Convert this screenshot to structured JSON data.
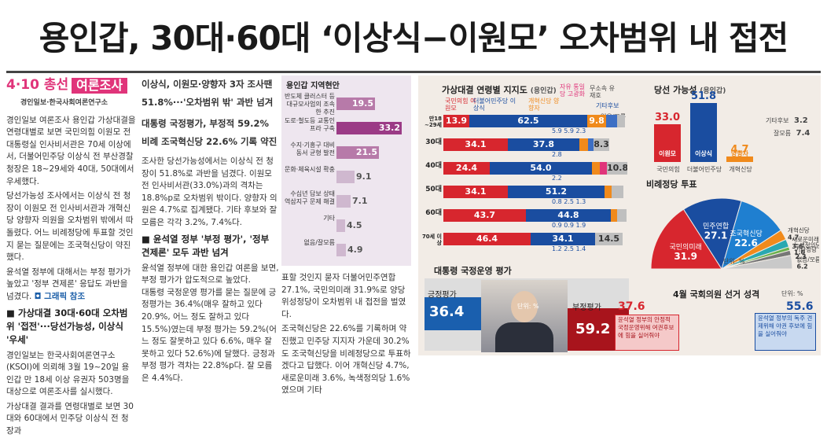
{
  "headline": "용인갑, 30대·60대 ‘이상식−이원모’ 오차범위 내 접전",
  "brand": {
    "date": "4·10 총선",
    "label": "여론조사",
    "sub": "경인일보·한국사회여론연구소"
  },
  "col1": {
    "paragraphs": [
      "경인일보 여론조사 용인갑 가상대결을 연령대별로 보면 국민의힘 이원모 전 대통령실 인사비서관은 70세 이상에서, 더불어민주당 이상식 전 부산경찰청장은 18~29세와 40대, 50대에서 우세했다.",
      "당선가능성 조사에서는 이상식 전 청장이 이원모 전 인사비서관과 개혁신당 양향자 의원을 오차범위 밖에서 따돌렸다. 어느 비례정당에 투표할 것인지 묻는 질문에는 조국혁신당이 약진했다.",
      "윤석열 정부에 대해서는 부정 평가가 높았고 '정부 견제론' 응답도 과반을 넘겼다."
    ],
    "see": "그래픽 참조",
    "subhead": "■ 가상대결 30대·60대 오차범위 '접전'···당선가능성, 이상식 '우세'",
    "paragraphs2": [
      "경인일보는 한국사회여론연구소(KSOI)에 의뢰해 3월 19~20일 용인갑 만 18세 이상 유권자 503명을 대상으로 여론조사를 실시했다.",
      "가상대결 결과를 연령대별로 보면 30대와 60대에서 민주당 이상식 전 청장과"
    ]
  },
  "col2": {
    "lead": [
      "이상식, 이원모·양향자 3자 조사땐",
      "51.8%···'오차범위 밖' 과반 넘겨"
    ],
    "lead2": [
      "대통령 국정평가, 부정적 59.2%",
      "비례 조국혁신당 22.6% 기록 약진"
    ],
    "paragraphs": [
      "조사한 당선가능성에서는 이상식 전 청장이 51.8%로 과반을 넘겼다. 이원모 전 인사비서관(33.0%)과의 격차는 18.8%p로 오차범위 밖이다. 양향자 의원은 4.7%로 집계됐다. 기타 후보와 잘 모름은 각각 3.2%, 7.4%다."
    ],
    "subhead": "■ 윤석열 정부 '부정 평가', '정부 견제론' 모두 과반 넘겨",
    "paragraphs2": [
      "윤석열 정부에 대한 용인갑 여론을 보면, 부정 평가가 압도적으로 높았다.",
      "대통령 국정운영 평가를 묻는 질문에 긍정평가는 36.4%(매우 잘하고 있다 20.9%, 어느 정도 잘하고 있다 15.5%)였는데 부정 평가는 59.2%(어느 정도 잘못하고 있다 6.6%, 매우 잘못하고 있다 52.6%)에 달했다. 긍정과 부정 평가 격차는 22.8%p다. 잘 모름은 4.4%다."
    ]
  },
  "col3": {
    "paragraphs": [
      "표할 것인지 묻자 더불어민주연합 27.1%, 국민의미래 31.9%로 양당 위성정당이 오차범위 내 접전을 벌였다.",
      "조국혁신당은 22.6%를 기록하며 약진했고 민주당 지지자 가운데 30.2%도 조국혁신당을 비례정당으로 투표하겠다고 답했다. 이어 개혁신당 4.7%, 새로운미래 3.6%, 녹색정의당 1.6%였으며 기타"
    ]
  },
  "region": {
    "title": "용인갑 지역현안",
    "items": [
      {
        "label": "반도체 클러스터 등 대규모사업의 조속한 추진",
        "value": 19.5,
        "text": "19.5"
      },
      {
        "label": "도로·철도등 교통인프라 구축",
        "value": 33.2,
        "text": "33.2"
      },
      {
        "label": "수지·기흥구 대비 동서 균형 발전",
        "value": 21.5,
        "text": "21.5"
      },
      {
        "label": "문화·체육시설 확충",
        "value": 9.1,
        "text": "9.1"
      },
      {
        "label": "수십년 답보 상태 역삼지구 문제 해결",
        "value": 7.1,
        "text": "7.1"
      },
      {
        "label": "기타",
        "value": 4.5,
        "text": "4.5"
      },
      {
        "label": "없음/잘모름",
        "value": 4.9,
        "text": "4.9"
      }
    ]
  },
  "age_chart": {
    "title": "가상대결 연령별 지지도",
    "unit": "(용인갑)",
    "legend": {
      "ppp": "국민의힘 이원모",
      "dem": "더불어민주당 이상식",
      "reform": "개혁신당 양향자",
      "liberal": "자유 통일당 고광화",
      "indep": "무소속 유재호",
      "etc": "기타후보",
      "unk": "없음/모름"
    },
    "rows": [
      {
        "age": "만18 ~29세",
        "ppp": 13.9,
        "dem": 62.5,
        "reform": 9.8,
        "liberal": 0,
        "indep": 6.0,
        "etc": 0,
        "unk": 4.0,
        "small": "5.9  5.9 2.3",
        "small2": "2.7 2.3 "
      },
      {
        "age": "30대",
        "ppp": 34.1,
        "dem": 37.8,
        "reform": 4.7,
        "liberal": 0,
        "indep": 2.8,
        "etc": 0,
        "unk": 8.3,
        "small": "2.8",
        "small2": ""
      },
      {
        "age": "40대",
        "ppp": 24.4,
        "dem": 54.0,
        "reform": 4.1,
        "liberal": 3.9,
        "indep": 0,
        "etc": 0,
        "unk": 10.8,
        "small": "2.2",
        "small2": ""
      },
      {
        "age": "50대",
        "ppp": 34.1,
        "dem": 51.2,
        "reform": 3.9,
        "liberal": 0,
        "indep": 0,
        "etc": 0,
        "unk": 6.1,
        "small": "0.8 2.5 1.3",
        "small2": ""
      },
      {
        "age": "60대",
        "ppp": 43.7,
        "dem": 44.8,
        "reform": 3.3,
        "liberal": 0,
        "indep": 0,
        "etc": 0,
        "unk": 4.8,
        "small": "0.9 0.9 1.9",
        "small2": ""
      },
      {
        "age": "70세 이상",
        "ppp": 46.4,
        "dem": 34.1,
        "reform": 0,
        "liberal": 0,
        "indep": 0,
        "etc": 0,
        "unk": 14.5,
        "small": "1.2 2.5 1.4",
        "small2": ""
      }
    ],
    "texts": {
      "r0ppp": "13.9",
      "r0dem": "62.5",
      "r0ref": "9.8",
      "r0ind": "6.0",
      "r0unk": "4.0",
      "r1ppp": "34.1",
      "r1dem": "37.8",
      "r1ref": "4.7",
      "r1unk": "8.3",
      "r2ppp": "24.4",
      "r2dem": "54.0",
      "r2ref": "4.1",
      "r2lib": "3.9",
      "r2unk": "10.8",
      "r3ppp": "34.1",
      "r3dem": "51.2",
      "r3ref": "3.9",
      "r3unk": "6.1",
      "r4ppp": "43.7",
      "r4dem": "44.8",
      "r4ref": "3.3",
      "r4unk": "4.8",
      "r5ppp": "46.4",
      "r5dem": "34.1",
      "r5unk": "14.5"
    }
  },
  "win_chart": {
    "title": "당선 가능성",
    "unit": "(용인갑)",
    "bars": [
      {
        "value": 33.0,
        "text": "33.0",
        "name": "이원모",
        "party": "국민의힘",
        "color": "#d7262e"
      },
      {
        "value": 51.8,
        "text": "51.8",
        "name": "이상식",
        "party": "더불어민주당",
        "color": "#1a4da0"
      },
      {
        "value": 4.7,
        "text": "4.7",
        "name": "양향자",
        "party": "개혁신당",
        "color": "#f08a1c"
      }
    ],
    "etc_label": "기타후보",
    "etc_value": "3.2",
    "unk_label": "잘모름",
    "unk_value": "7.4"
  },
  "pie_chart": {
    "title": "비례정당 투표",
    "unit": "단위: %",
    "slices": [
      {
        "name": "국민의미래",
        "value": 31.9,
        "text": "31.9",
        "color": "#d7262e"
      },
      {
        "name": "민주연합",
        "value": 27.1,
        "text": "27.1",
        "color": "#1a4da0"
      },
      {
        "name": "조국혁신당",
        "value": 22.6,
        "text": "22.6",
        "color": "#1f7fd0"
      },
      {
        "name": "개혁신당",
        "value": 4.7,
        "text": "4.7",
        "color": "#f08a1c"
      },
      {
        "name": "새로운미래",
        "value": 3.6,
        "text": "3.6",
        "color": "#2aa8b0"
      },
      {
        "name": "녹색정의당",
        "value": 1.6,
        "text": "1.6",
        "color": "#6ab04c"
      },
      {
        "name": "기타정당",
        "value": 2.3,
        "text": "2.3",
        "color": "#777777"
      },
      {
        "name": "없음/모름",
        "value": 6.2,
        "text": "6.2",
        "color": "#c9c9c9"
      }
    ]
  },
  "approval": {
    "title": "대통령 국정운영 평가",
    "pos_label": "긍정평가",
    "pos_value": "36.4",
    "neg_label": "부정평가",
    "neg_value": "59.2",
    "unit": "단위: %"
  },
  "election_nature": {
    "title": "4월 국회의원 선거 성격",
    "unit": "단위: %",
    "left_value": "37.6",
    "left_text": "윤석열 정부의 안정적 국정운영위해 여권후보에 힘을 실어줘야",
    "right_value": "55.6",
    "right_text": "윤석열 정부의 독주 견제위해 야권 후보에 힘을 실어줘야"
  },
  "colors": {
    "ppp": "#d7262e",
    "dem": "#1a4da0",
    "reform": "#f08a1c",
    "brand": "#e0347a"
  }
}
